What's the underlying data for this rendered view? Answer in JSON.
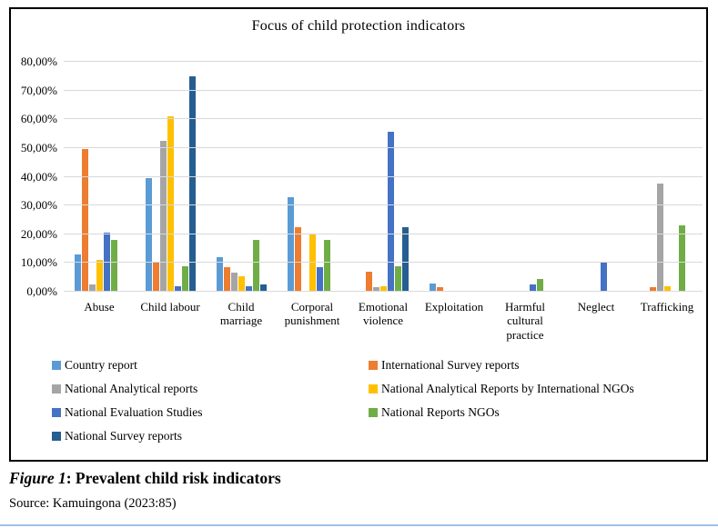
{
  "caption": {
    "figure_label": "Figure 1",
    "figure_text": ": Prevalent child risk indicators",
    "source": "Source: Kamuingona (2023:85)"
  },
  "chart_data": {
    "type": "bar",
    "title": "Focus of child protection indicators",
    "categories": [
      "Abuse",
      "Child labour",
      "Child marriage",
      "Corporal punishment",
      "Emotional violence",
      "Exploitation",
      "Harmful cultural practice",
      "Neglect",
      "Trafficking"
    ],
    "series": [
      {
        "name": "Country report",
        "color": "#5B9BD5",
        "values": [
          13,
          39.5,
          12,
          33,
          0,
          3,
          0,
          0,
          0
        ]
      },
      {
        "name": "International Survey reports",
        "color": "#ED7D31",
        "values": [
          49.5,
          10,
          8.5,
          22.5,
          7,
          1.5,
          0,
          0,
          1.5
        ]
      },
      {
        "name": "National Analytical reports",
        "color": "#A5A5A5",
        "values": [
          2.5,
          52.5,
          6.5,
          0,
          1.5,
          0,
          0,
          0,
          37.5
        ]
      },
      {
        "name": "National Analytical Reports by International NGOs",
        "color": "#FFC000",
        "values": [
          11,
          61,
          5.5,
          20,
          2,
          0,
          0,
          0,
          2
        ]
      },
      {
        "name": "National Evaluation Studies",
        "color": "#4472C4",
        "values": [
          20.5,
          2,
          2,
          8.5,
          55.5,
          0,
          2.5,
          10.5,
          0
        ]
      },
      {
        "name": "National Reports NGOs",
        "color": "#70AD47",
        "values": [
          18,
          9,
          18,
          18,
          9,
          0,
          4.5,
          0,
          23
        ]
      },
      {
        "name": "National Survey reports",
        "color": "#255E91",
        "values": [
          0,
          75,
          2.5,
          0,
          22.5,
          0,
          0,
          0,
          0
        ]
      }
    ],
    "ylim": [
      0,
      80
    ],
    "ytick_labels": [
      "0,00%",
      "10,00%",
      "20,00%",
      "30,00%",
      "40,00%",
      "50,00%",
      "60,00%",
      "70,00%",
      "80,00%"
    ],
    "grid": true,
    "gridline_color": "#D9D9D9",
    "legend_position": "bottom"
  }
}
